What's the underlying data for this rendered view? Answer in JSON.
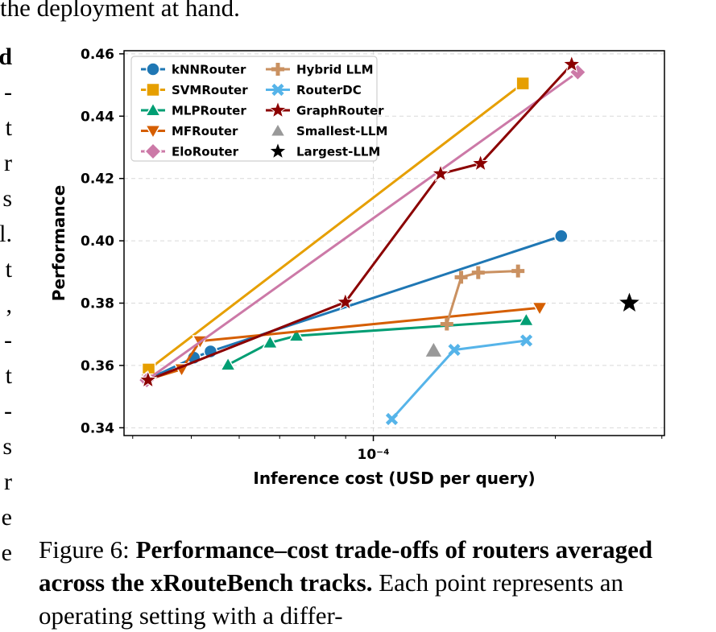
{
  "context_top": "the deployment at hand.",
  "left_column_fragments": [
    "d",
    "-",
    "t",
    "r",
    "s",
    "l.",
    "t",
    ",",
    "-",
    "t",
    "-",
    "s",
    "r",
    "e",
    "e"
  ],
  "caption": {
    "label": "Figure 6:",
    "title": "Performance–cost trade-offs of routers averaged across the xRouteBench tracks.",
    "text": "Each point represents an operating setting with a differ-"
  },
  "chart_data": {
    "type": "scatter",
    "xlabel": "Inference cost (USD per query)",
    "ylabel": "Performance",
    "x_scale": "log",
    "xlim": [
      3.87e-05,
      0.000303
    ],
    "ylim": [
      0.3375,
      0.461
    ],
    "xticks": [
      {
        "value": 0.0001,
        "label": "10⁻⁴"
      }
    ],
    "yticks": [
      0.34,
      0.36,
      0.38,
      0.4,
      0.42,
      0.44,
      0.46
    ],
    "ytick_labels": [
      "0.34",
      "0.36",
      "0.38",
      "0.40",
      "0.42",
      "0.44",
      "0.46"
    ],
    "grid": true,
    "legend_position": "top-left",
    "series": [
      {
        "name": "kNNRouter",
        "color": "#1f77b4",
        "marker": "circle",
        "line": true,
        "points": [
          [
            4.23e-05,
            0.3555
          ],
          [
            5.05e-05,
            0.3625
          ],
          [
            5.38e-05,
            0.3645
          ],
          [
            0.0002045,
            0.4015
          ]
        ]
      },
      {
        "name": "SVMRouter",
        "color": "#e69f00",
        "marker": "square",
        "line": true,
        "points": [
          [
            4.25e-05,
            0.3587
          ],
          [
            0.0001767,
            0.4505
          ]
        ]
      },
      {
        "name": "MLPRouter",
        "color": "#009e73",
        "marker": "triangle-up",
        "line": true,
        "points": [
          [
            5.75e-05,
            0.3602
          ],
          [
            6.75e-05,
            0.3673
          ],
          [
            7.46e-05,
            0.3695
          ],
          [
            0.000179,
            0.3745
          ]
        ]
      },
      {
        "name": "MFRouter",
        "color": "#d55e00",
        "marker": "triangle-down",
        "line": true,
        "points": [
          [
            4.24e-05,
            0.3555
          ],
          [
            4.82e-05,
            0.3588
          ],
          [
            5.17e-05,
            0.3678
          ],
          [
            0.0001884,
            0.3785
          ]
        ]
      },
      {
        "name": "EloRouter",
        "color": "#cc79a7",
        "marker": "diamond",
        "line": true,
        "points": [
          [
            4.22e-05,
            0.3553
          ],
          [
            0.0002178,
            0.4541
          ]
        ]
      },
      {
        "name": "Hybrid LLM",
        "color": "#ca9161",
        "marker": "plus",
        "line": true,
        "points": [
          [
            0.0001323,
            0.3733
          ],
          [
            0.0001397,
            0.3883
          ],
          [
            0.0001491,
            0.3898
          ],
          [
            0.0001735,
            0.3903
          ]
        ]
      },
      {
        "name": "RouterDC",
        "color": "#56b4e9",
        "marker": "x",
        "line": true,
        "points": [
          [
            0.0001073,
            0.3428
          ],
          [
            0.0001361,
            0.365
          ],
          [
            0.0001791,
            0.368
          ]
        ]
      },
      {
        "name": "GraphRouter",
        "color": "#8b0000",
        "marker": "star",
        "line": true,
        "points": [
          [
            4.24e-05,
            0.3553
          ],
          [
            8.99e-05,
            0.3803
          ],
          [
            0.0001292,
            0.4215
          ],
          [
            0.0001504,
            0.4248
          ],
          [
            0.0002128,
            0.4566
          ]
        ]
      },
      {
        "name": "Smallest-LLM",
        "color": "#999999",
        "marker": "triangle-up",
        "line": false,
        "points": [
          [
            0.0001258,
            0.3648
          ]
        ]
      },
      {
        "name": "Largest-LLM",
        "color": "#000000",
        "marker": "star",
        "line": false,
        "points": [
          [
            0.0002651,
            0.38
          ]
        ]
      }
    ]
  }
}
